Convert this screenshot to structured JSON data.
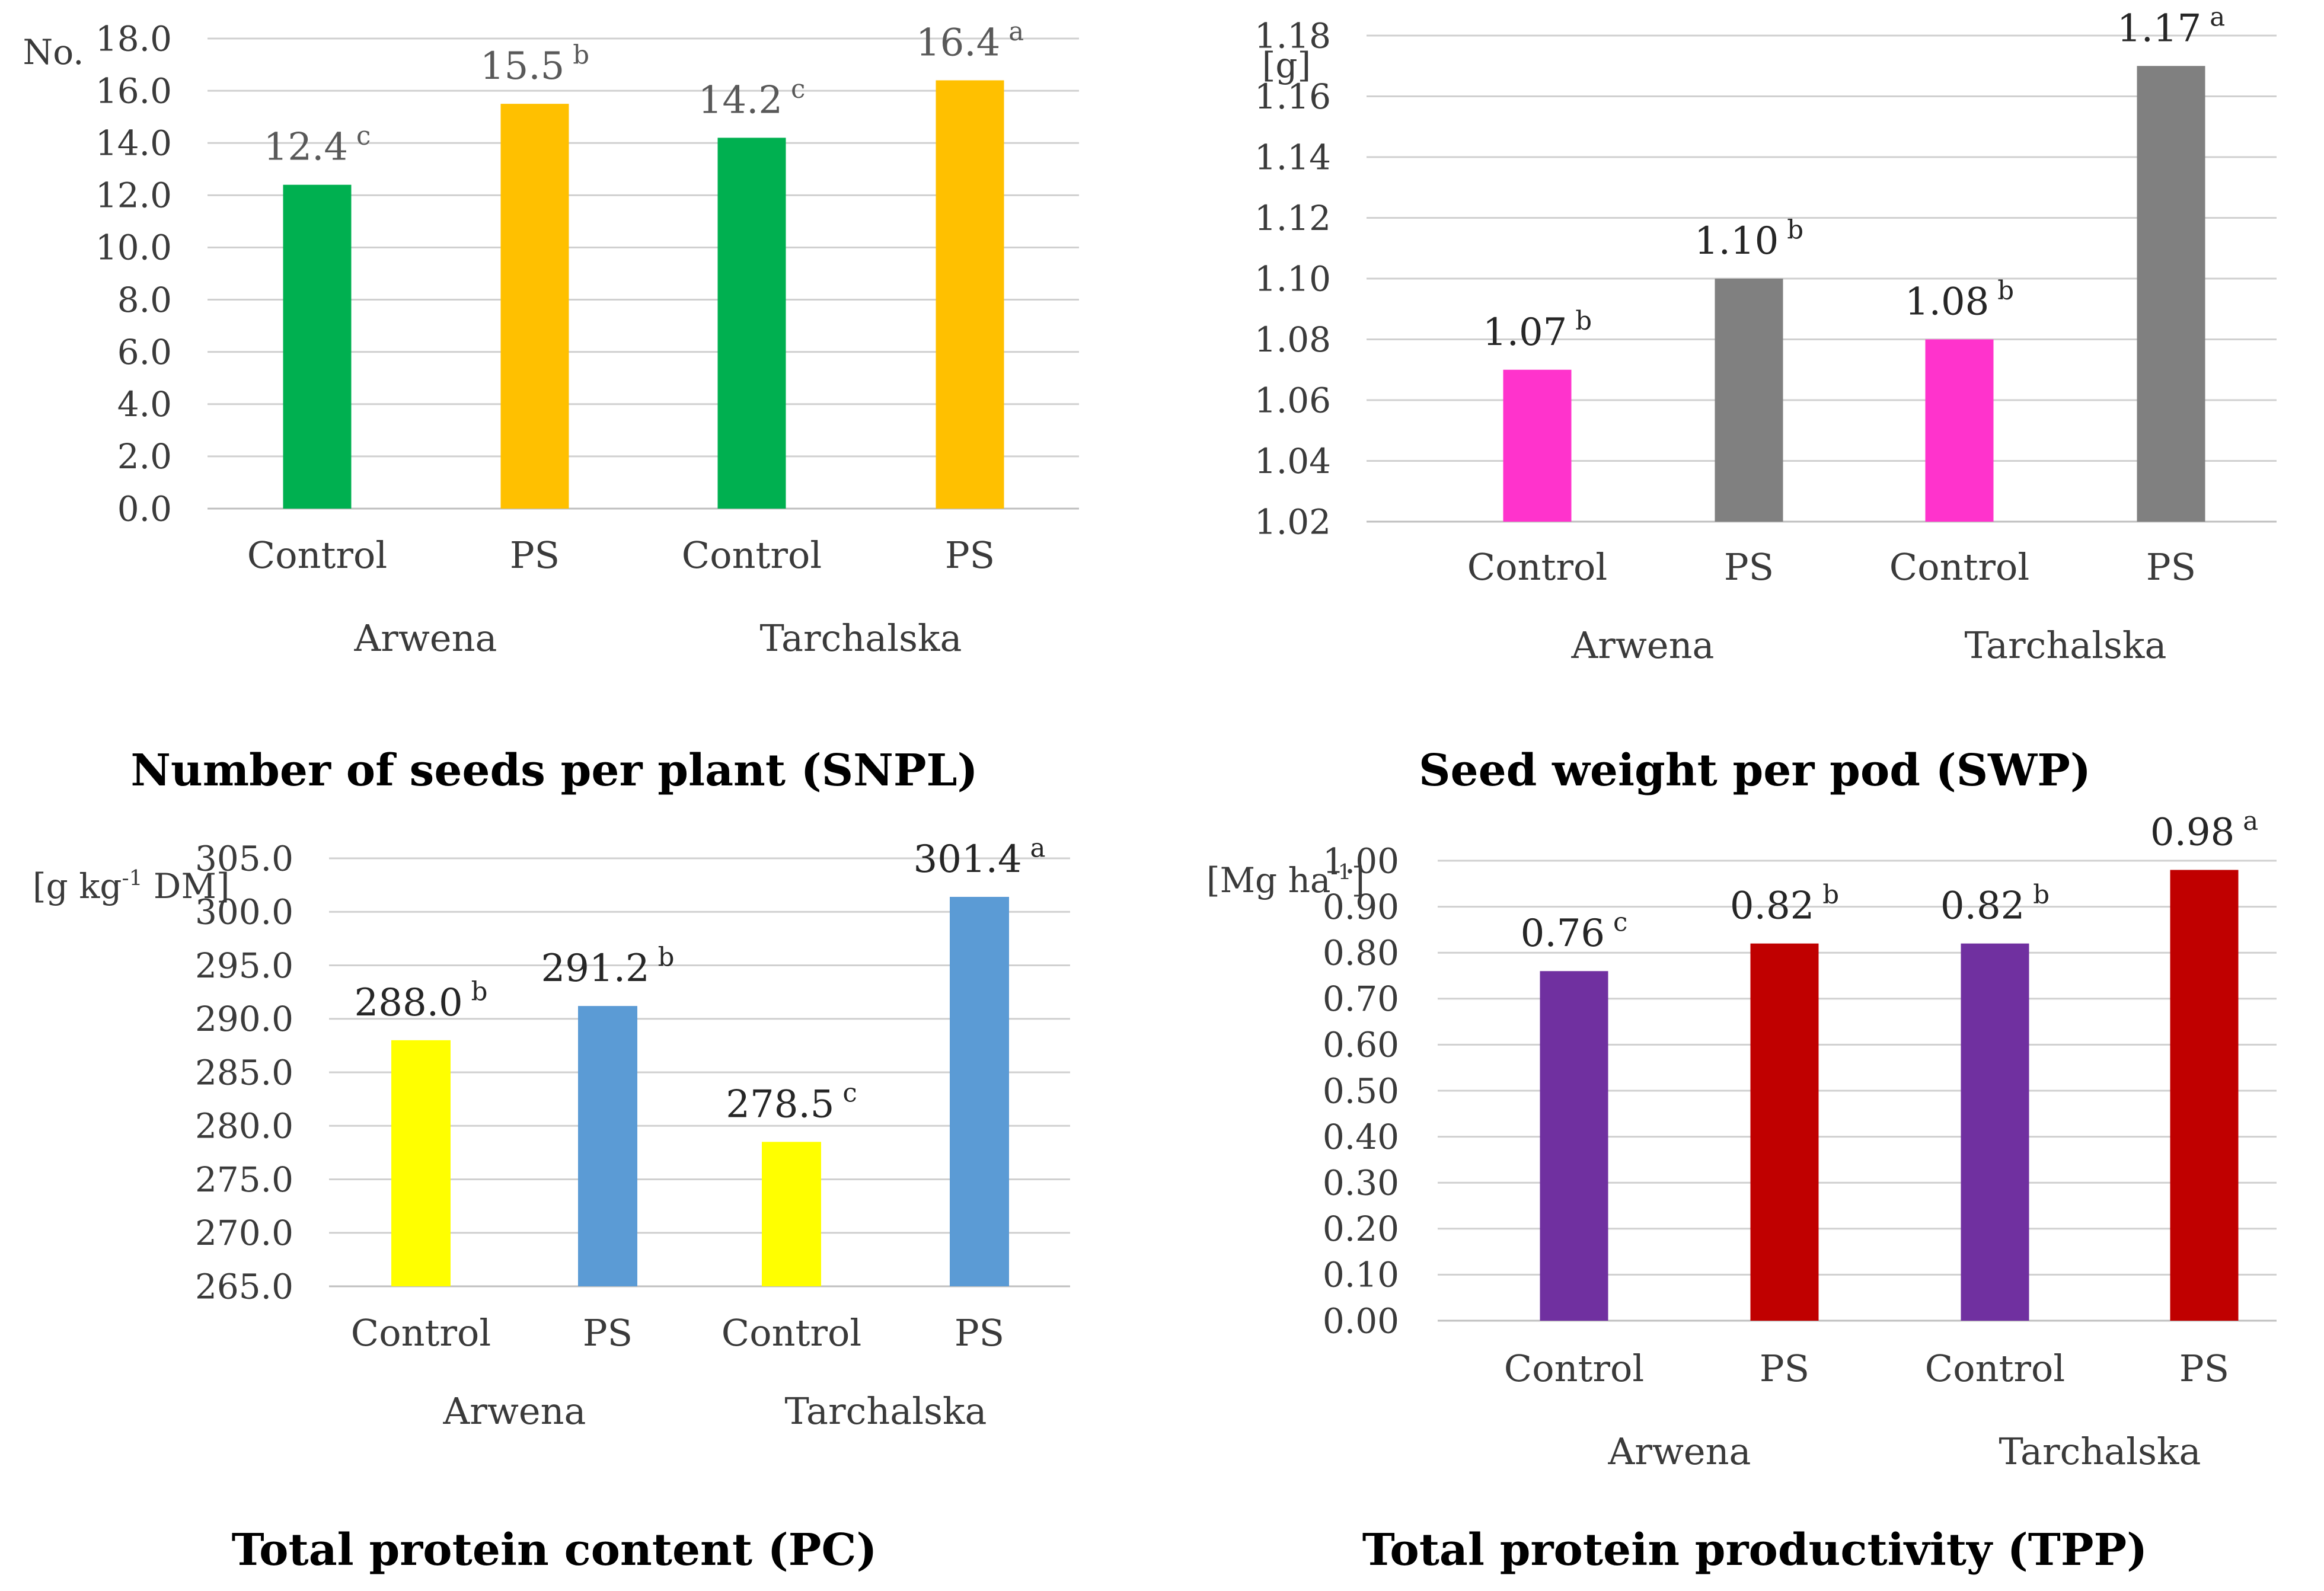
{
  "chart_data": [
    {
      "type": "bar",
      "title": "Number of seeds per plant (SNPL)",
      "ylabel": "No.",
      "ylim": [
        0,
        18
      ],
      "yticks": [
        "0.0",
        "2.0",
        "4.0",
        "6.0",
        "8.0",
        "10.0",
        "12.0",
        "14.0",
        "16.0",
        "18.0"
      ],
      "tick_values": [
        0,
        2,
        4,
        6,
        8,
        10,
        12,
        14,
        16,
        18
      ],
      "categories": [
        "Control",
        "PS",
        "Control",
        "PS"
      ],
      "groups": [
        "Arwena",
        "Tarchalska"
      ],
      "values": [
        12.4,
        15.5,
        14.2,
        16.4
      ],
      "value_labels": [
        "12.4",
        "15.5",
        "14.2",
        "16.4"
      ],
      "letters": [
        "c",
        "b",
        "c",
        "a"
      ],
      "colors": [
        "#00b050",
        "#ffc000",
        "#00b050",
        "#ffc000"
      ],
      "label_color": "#595959"
    },
    {
      "type": "bar",
      "title": "Seed weight per pod (SWP)",
      "ylabel": "[g]",
      "ylim": [
        1.02,
        1.18
      ],
      "yticks": [
        "1.02",
        "1.04",
        "1.06",
        "1.08",
        "1.10",
        "1.12",
        "1.14",
        "1.16",
        "1.18"
      ],
      "tick_values": [
        1.02,
        1.04,
        1.06,
        1.08,
        1.1,
        1.12,
        1.14,
        1.16,
        1.18
      ],
      "categories": [
        "Control",
        "PS",
        "Control",
        "PS"
      ],
      "groups": [
        "Arwena",
        "Tarchalska"
      ],
      "values": [
        1.07,
        1.1,
        1.08,
        1.17
      ],
      "value_labels": [
        "1.07",
        "1.10",
        "1.08",
        "1.17"
      ],
      "letters": [
        "b",
        "b",
        "b",
        "a"
      ],
      "colors": [
        "#ff33cc",
        "#808080",
        "#ff33cc",
        "#808080"
      ],
      "label_color": "#262626"
    },
    {
      "type": "bar",
      "title": "Total protein content (PC)",
      "ylabel_parts": [
        "[g kg",
        "-1",
        " DM]"
      ],
      "ylim": [
        265,
        305
      ],
      "yticks": [
        "265.0",
        "270.0",
        "275.0",
        "280.0",
        "285.0",
        "290.0",
        "295.0",
        "300.0",
        "305.0"
      ],
      "tick_values": [
        265,
        270,
        275,
        280,
        285,
        290,
        295,
        300,
        305
      ],
      "categories": [
        "Control",
        "PS",
        "Control",
        "PS"
      ],
      "groups": [
        "Arwena",
        "Tarchalska"
      ],
      "values": [
        288.0,
        291.2,
        278.5,
        301.4
      ],
      "value_labels": [
        "288.0",
        "291.2",
        "278.5",
        "301.4"
      ],
      "letters": [
        "b",
        "b",
        "c",
        "a"
      ],
      "colors": [
        "#ffff00",
        "#5b9bd5",
        "#ffff00",
        "#5b9bd5"
      ],
      "label_color": "#262626"
    },
    {
      "type": "bar",
      "title": "Total protein productivity (TPP)",
      "ylabel_parts": [
        "[Mg ha",
        "-1",
        "]"
      ],
      "ylim": [
        0,
        1
      ],
      "yticks": [
        "0.00",
        "0.10",
        "0.20",
        "0.30",
        "0.40",
        "0.50",
        "0.60",
        "0.70",
        "0.80",
        "0.90",
        "1.00"
      ],
      "tick_values": [
        0,
        0.1,
        0.2,
        0.3,
        0.4,
        0.5,
        0.6,
        0.7,
        0.8,
        0.9,
        1.0
      ],
      "categories": [
        "Control",
        "PS",
        "Control",
        "PS"
      ],
      "groups": [
        "Arwena",
        "Tarchalska"
      ],
      "values": [
        0.76,
        0.82,
        0.82,
        0.98
      ],
      "value_labels": [
        "0.76",
        "0.82",
        "0.82",
        "0.98"
      ],
      "letters": [
        "c",
        "b",
        "b",
        "a"
      ],
      "colors": [
        "#7030a0",
        "#c00000",
        "#7030a0",
        "#c00000"
      ],
      "label_color": "#262626"
    }
  ]
}
